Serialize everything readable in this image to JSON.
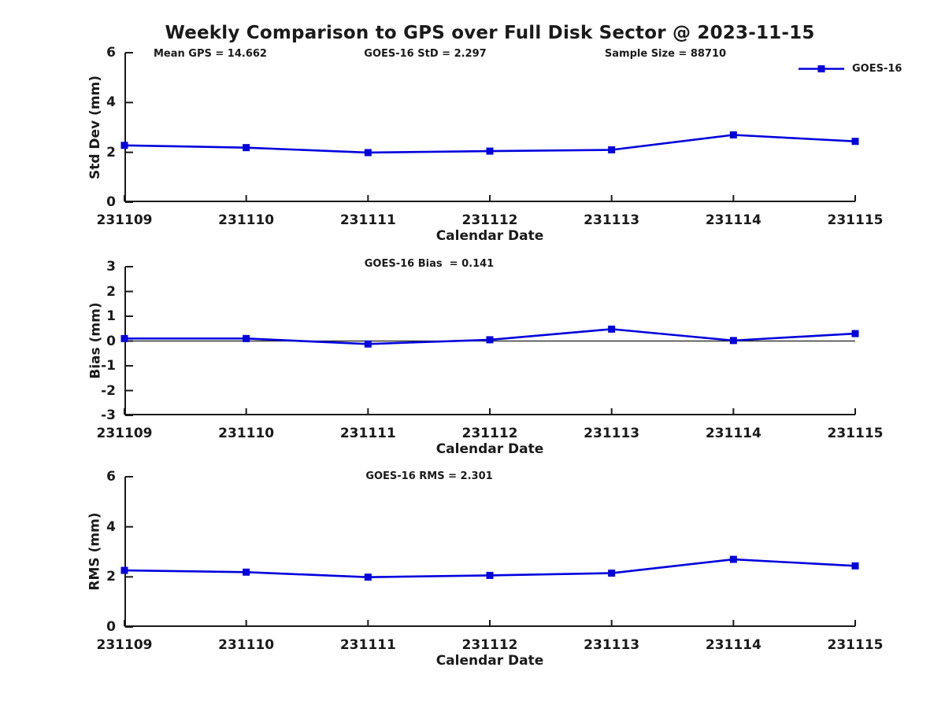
{
  "title": "Weekly Comparison to GPS over Full Disk Sector @ 2023-11-15",
  "legend": {
    "label": "GOES-16"
  },
  "colors": {
    "line": "#0000dd",
    "text": "#1a1a1a",
    "axis": "#1a1a1a",
    "background": "#ffffff"
  },
  "chart_data": [
    {
      "type": "line",
      "name": "std-dev",
      "annotations": [
        "Mean GPS = 14.662",
        "GOES-16 StD = 2.297",
        "Sample Size = 88710"
      ],
      "categories": [
        "231109",
        "231110",
        "231111",
        "231112",
        "231113",
        "231114",
        "231115"
      ],
      "series": [
        {
          "name": "GOES-16",
          "values": [
            2.28,
            2.19,
            1.99,
            2.05,
            2.1,
            2.7,
            2.44
          ]
        }
      ],
      "xlabel": "Calendar Date",
      "ylabel": "Std Dev (mm)",
      "ylim": [
        0,
        6
      ],
      "yticks": [
        0,
        2,
        4,
        6
      ],
      "zero_line": false,
      "grid": false,
      "legend_position": "top-right",
      "marker": "square"
    },
    {
      "type": "line",
      "name": "bias",
      "annotations": [
        "GOES-16 Bias  = 0.141"
      ],
      "categories": [
        "231109",
        "231110",
        "231111",
        "231112",
        "231113",
        "231114",
        "231115"
      ],
      "series": [
        {
          "name": "GOES-16",
          "values": [
            0.1,
            0.1,
            -0.12,
            0.05,
            0.48,
            0.02,
            0.3
          ]
        }
      ],
      "xlabel": "Calendar Date",
      "ylabel": "Bias (mm)",
      "ylim": [
        -3,
        3
      ],
      "yticks": [
        3,
        2,
        1,
        0,
        -1,
        -2,
        -3
      ],
      "zero_line": true,
      "grid": false,
      "marker": "square"
    },
    {
      "type": "line",
      "name": "rms",
      "annotations": [
        "GOES-16 RMS = 2.301"
      ],
      "categories": [
        "231109",
        "231110",
        "231111",
        "231112",
        "231113",
        "231114",
        "231115"
      ],
      "series": [
        {
          "name": "GOES-16",
          "values": [
            2.26,
            2.19,
            1.99,
            2.06,
            2.15,
            2.7,
            2.44
          ]
        }
      ],
      "xlabel": "Calendar Date",
      "ylabel": "RMS (mm)",
      "ylim": [
        0,
        6
      ],
      "yticks": [
        0,
        2,
        4,
        6
      ],
      "zero_line": false,
      "grid": false,
      "marker": "square"
    }
  ]
}
